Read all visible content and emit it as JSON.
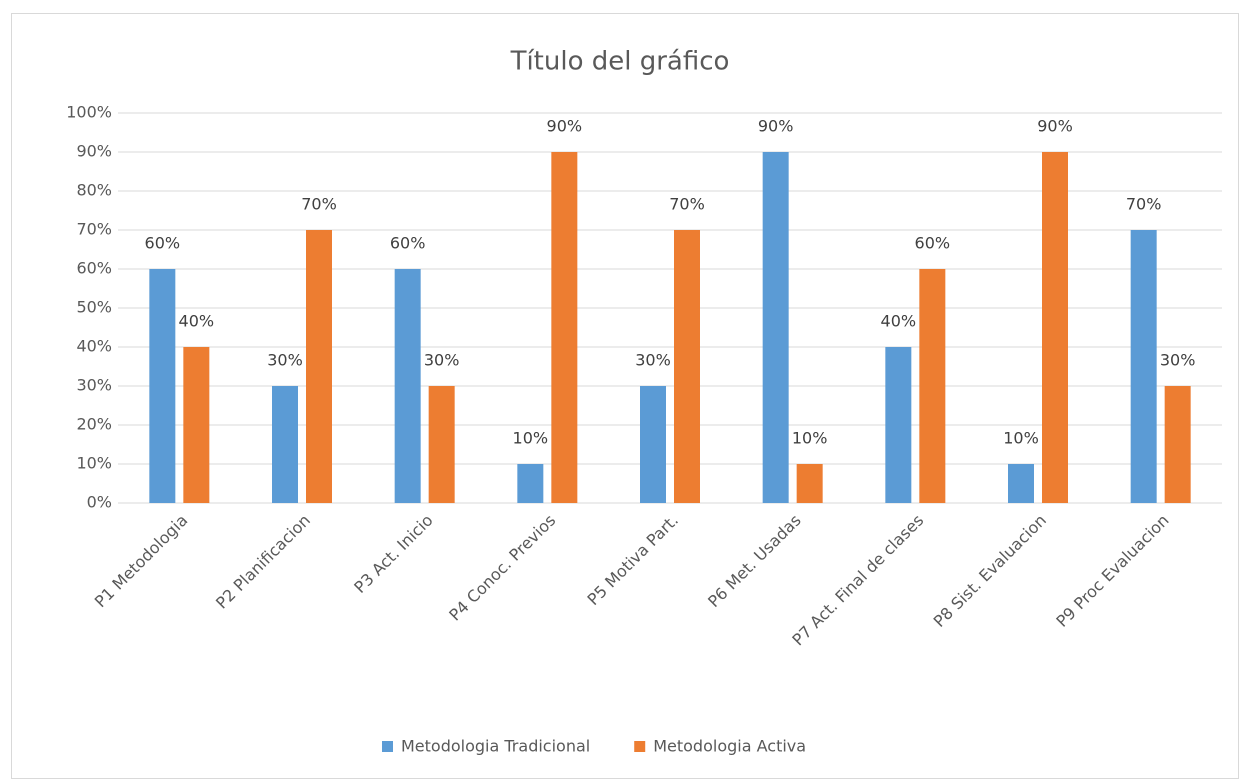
{
  "chart_data": {
    "type": "bar",
    "title": "Título del gráfico",
    "categories": [
      "P1 Metodologia",
      "P2 Planificacion",
      "P3 Act. Inicio",
      "P4 Conoc. Previos",
      "P5 Motiva Part.",
      "P6 Met. Usadas",
      "P7 Act. Final de clases",
      "P8 Sist. Evaluacion",
      "P9 Proc Evaluacion"
    ],
    "series": [
      {
        "name": "Metodologia Tradicional",
        "color": "#5b9bd5",
        "values": [
          60,
          30,
          60,
          10,
          30,
          90,
          40,
          10,
          70
        ],
        "value_labels": [
          "60%",
          "30%",
          "60%",
          "10%",
          "30%",
          "90%",
          "40%",
          "10%",
          "70%"
        ]
      },
      {
        "name": "Metodologia Activa",
        "color": "#ed7d31",
        "values": [
          40,
          70,
          30,
          90,
          70,
          10,
          60,
          90,
          30
        ],
        "value_labels": [
          "40%",
          "70%",
          "30%",
          "90%",
          "70%",
          "10%",
          "60%",
          "90%",
          "30%"
        ]
      }
    ],
    "ylim": [
      0,
      100
    ],
    "yticks": [
      {
        "value": 0,
        "label": "0%"
      },
      {
        "value": 10,
        "label": "10%"
      },
      {
        "value": 20,
        "label": "20%"
      },
      {
        "value": 30,
        "label": "30%"
      },
      {
        "value": 40,
        "label": "40%"
      },
      {
        "value": 50,
        "label": "50%"
      },
      {
        "value": 60,
        "label": "60%"
      },
      {
        "value": 70,
        "label": "70%"
      },
      {
        "value": 80,
        "label": "80%"
      },
      {
        "value": 90,
        "label": "90%"
      },
      {
        "value": 100,
        "label": "100%"
      }
    ],
    "grid": true,
    "legend": "bottom"
  }
}
